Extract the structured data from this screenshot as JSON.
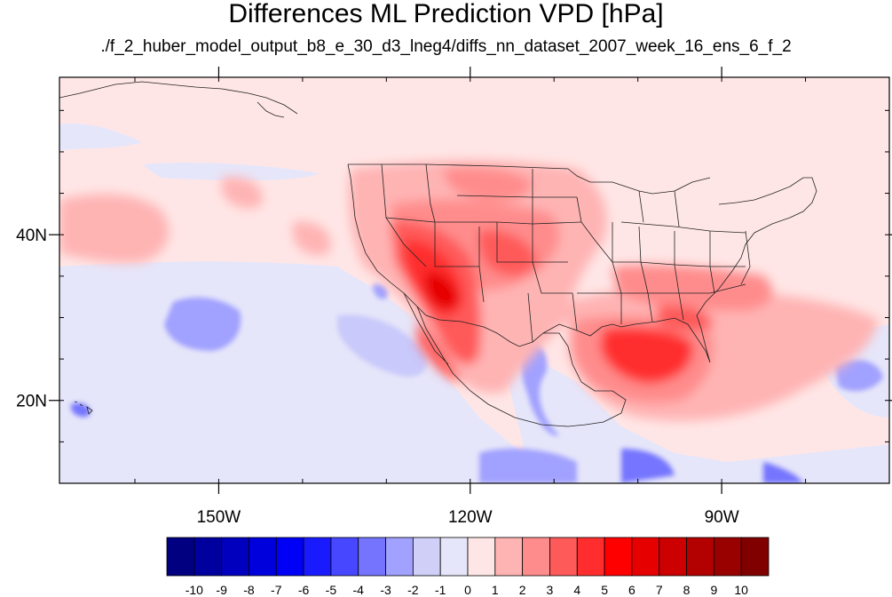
{
  "title": "Differences ML Prediction VPD [hPa]",
  "subtitle": "./f_2_huber_model_output_b8_e_30_d3_lneg4/diffs_nn_dataset_2007_week_16_ens_6_f_2",
  "map": {
    "lon_range": [
      -169,
      -70
    ],
    "lat_range": [
      10,
      59
    ],
    "lon_labels": [
      {
        "lon": -150,
        "label": "150W"
      },
      {
        "lon": -120,
        "label": "120W"
      },
      {
        "lon": -90,
        "label": "90W"
      }
    ],
    "lat_labels": [
      {
        "lat": 40,
        "label": "40N"
      },
      {
        "lat": 20,
        "label": "20N"
      }
    ]
  },
  "colorbar": {
    "labels": [
      "-10",
      "-9",
      "-8",
      "-7",
      "-6",
      "-5",
      "-4",
      "-3",
      "-2",
      "-1",
      "0",
      "1",
      "2",
      "3",
      "4",
      "5",
      "6",
      "7",
      "8",
      "9",
      "10"
    ],
    "colors": [
      "#000080",
      "#00009f",
      "#0000be",
      "#0000dd",
      "#0000f7",
      "#1a1aff",
      "#4747ff",
      "#7474ff",
      "#a1a1ff",
      "#cfcff8",
      "#e6e6fa",
      "#ffe6e6",
      "#ffb4b4",
      "#ff8c8c",
      "#ff5a5a",
      "#ff2d2d",
      "#ff0000",
      "#e60000",
      "#cc0000",
      "#b30000",
      "#990000",
      "#800000"
    ]
  }
}
